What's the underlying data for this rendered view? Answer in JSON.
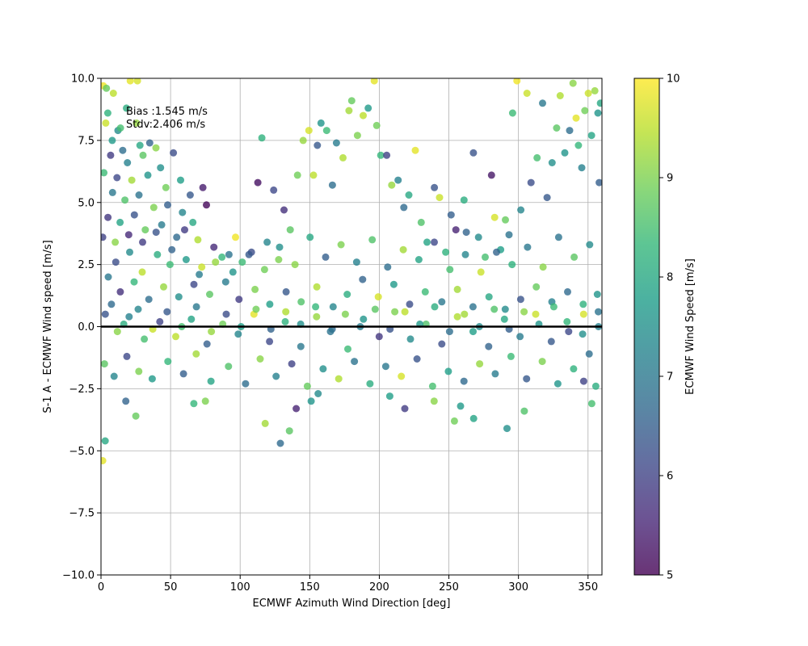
{
  "chart_data": {
    "type": "scatter",
    "title": "",
    "xlabel": "ECMWF Azimuth Wind Direction [deg]",
    "ylabel": "S-1 A - ECMWF Wind speed [m/s]",
    "xlim": [
      0,
      360
    ],
    "ylim": [
      -10,
      10
    ],
    "x_ticks": [
      0,
      50,
      100,
      150,
      200,
      250,
      300,
      350
    ],
    "y_ticks": [
      -10.0,
      -7.5,
      -5.0,
      -2.5,
      0.0,
      2.5,
      5.0,
      7.5,
      10.0
    ],
    "x_tick_labels": [
      "0",
      "50",
      "100",
      "150",
      "200",
      "250",
      "300",
      "350"
    ],
    "y_tick_labels": [
      "−10.0",
      "−7.5",
      "−5.0",
      "−2.5",
      "0.0",
      "2.5",
      "5.0",
      "7.5",
      "10.0"
    ],
    "grid": true,
    "reference_line_y": 0.0,
    "point_alpha": 0.8,
    "colormap": "viridis",
    "colormap_stops": [
      "#440154",
      "#482878",
      "#3e4989",
      "#31688e",
      "#26828e",
      "#1f9e89",
      "#35b779",
      "#6ece58",
      "#b5de2b",
      "#fde725"
    ],
    "color_label": "ECMWF Wind Speed [m/s]",
    "color_range": [
      5,
      10
    ],
    "color_ticks": [
      5,
      6,
      7,
      8,
      9,
      10
    ],
    "color_tick_labels": [
      "5",
      "6",
      "7",
      "8",
      "9",
      "10"
    ],
    "annotations": [
      "Bias :1.545 m/s",
      "Stdv:2.406 m/s"
    ],
    "points": [
      [
        1.6,
        9.7,
        9.9
      ],
      [
        3.9,
        9.6,
        8.8
      ],
      [
        8.9,
        9.4,
        9.5
      ],
      [
        4.9,
        8.6,
        8.2
      ],
      [
        12.2,
        7.9,
        7.4
      ],
      [
        21.0,
        9.9,
        9.8
      ],
      [
        26.2,
        9.9,
        9.7
      ],
      [
        18.3,
        8.8,
        8.1
      ],
      [
        3.4,
        8.2,
        9.6
      ],
      [
        14.0,
        8.0,
        8.5
      ],
      [
        25.5,
        8.2,
        9.2
      ],
      [
        8.1,
        7.5,
        7.7
      ],
      [
        15.6,
        7.1,
        6.8
      ],
      [
        28.0,
        7.3,
        8.0
      ],
      [
        35.0,
        7.4,
        6.6
      ],
      [
        6.9,
        6.9,
        5.9
      ],
      [
        19.0,
        6.6,
        7.2
      ],
      [
        30.2,
        6.9,
        8.7
      ],
      [
        39.5,
        7.2,
        9.1
      ],
      [
        42.8,
        6.4,
        7.5
      ],
      [
        52.0,
        7.0,
        6.2
      ],
      [
        2.1,
        6.2,
        8.4
      ],
      [
        11.5,
        6.0,
        6.1
      ],
      [
        22.1,
        5.9,
        9.3
      ],
      [
        33.7,
        6.1,
        7.6
      ],
      [
        46.6,
        5.6,
        8.9
      ],
      [
        57.2,
        5.9,
        7.8
      ],
      [
        64.1,
        5.3,
        6.4
      ],
      [
        73.2,
        5.6,
        5.4
      ],
      [
        75.8,
        4.9,
        5.1
      ],
      [
        8.3,
        5.4,
        7.0
      ],
      [
        17.2,
        5.1,
        8.6
      ],
      [
        27.3,
        5.3,
        6.9
      ],
      [
        37.9,
        4.8,
        9.0
      ],
      [
        47.9,
        4.9,
        6.5
      ],
      [
        58.5,
        4.6,
        7.3
      ],
      [
        66.0,
        4.2,
        8.0
      ],
      [
        5.0,
        4.4,
        5.8
      ],
      [
        13.7,
        4.2,
        7.9
      ],
      [
        24.0,
        4.5,
        6.3
      ],
      [
        31.8,
        3.9,
        8.8
      ],
      [
        43.6,
        4.1,
        7.1
      ],
      [
        54.4,
        3.6,
        6.7
      ],
      [
        69.6,
        3.5,
        9.4
      ],
      [
        81.1,
        3.2,
        5.6
      ],
      [
        86.9,
        2.8,
        8.3
      ],
      [
        1.2,
        3.6,
        6.0
      ],
      [
        10.2,
        3.4,
        9.1
      ],
      [
        20.6,
        3.0,
        7.4
      ],
      [
        29.9,
        3.4,
        5.9
      ],
      [
        40.5,
        2.9,
        8.1
      ],
      [
        50.9,
        3.1,
        6.6
      ],
      [
        61.2,
        2.7,
        7.7
      ],
      [
        72.4,
        2.4,
        9.6
      ],
      [
        92.0,
        2.9,
        6.9
      ],
      [
        96.7,
        3.6,
        9.9
      ],
      [
        101.5,
        2.6,
        8.4
      ],
      [
        108.1,
        3.0,
        6.2
      ],
      [
        112.7,
        5.8,
        5.2
      ],
      [
        115.6,
        7.6,
        8.2
      ],
      [
        119.4,
        3.4,
        7.3
      ],
      [
        124.1,
        5.5,
        6.1
      ],
      [
        127.7,
        2.7,
        9.0
      ],
      [
        131.5,
        4.7,
        5.7
      ],
      [
        136.0,
        3.9,
        8.7
      ],
      [
        141.2,
        6.1,
        8.9
      ],
      [
        145.3,
        7.5,
        9.2
      ],
      [
        149.4,
        7.9,
        9.7
      ],
      [
        152.7,
        6.1,
        9.5
      ],
      [
        155.5,
        7.3,
        6.4
      ],
      [
        158.1,
        8.2,
        7.6
      ],
      [
        162.2,
        7.9,
        8.4
      ],
      [
        166.3,
        5.7,
        6.8
      ],
      [
        169.2,
        7.4,
        7.1
      ],
      [
        173.9,
        6.8,
        9.4
      ],
      [
        178.2,
        8.7,
        9.3
      ],
      [
        180.2,
        9.1,
        8.8
      ],
      [
        184.3,
        7.7,
        9.0
      ],
      [
        188.4,
        8.5,
        9.5
      ],
      [
        192.0,
        8.8,
        7.7
      ],
      [
        196.4,
        9.9,
        9.8
      ],
      [
        198.1,
        8.1,
        8.9
      ],
      [
        201.0,
        6.9,
        8.3
      ],
      [
        205.3,
        6.9,
        6.0
      ],
      [
        208.9,
        5.7,
        9.2
      ],
      [
        213.5,
        5.9,
        7.2
      ],
      [
        217.6,
        4.8,
        6.7
      ],
      [
        221.2,
        5.3,
        8.0
      ],
      [
        225.9,
        7.1,
        9.8
      ],
      [
        230.1,
        4.2,
        8.6
      ],
      [
        234.3,
        3.4,
        7.9
      ],
      [
        239.6,
        5.6,
        6.3
      ],
      [
        243.3,
        5.2,
        9.6
      ],
      [
        247.7,
        3.0,
        8.2
      ],
      [
        251.6,
        4.5,
        6.5
      ],
      [
        255.0,
        3.9,
        5.5
      ],
      [
        260.9,
        5.1,
        8.1
      ],
      [
        262.5,
        3.8,
        6.6
      ],
      [
        267.6,
        7.0,
        6.3
      ],
      [
        271.3,
        3.6,
        7.4
      ],
      [
        276.1,
        2.8,
        8.5
      ],
      [
        280.6,
        6.1,
        5.3
      ],
      [
        282.9,
        4.4,
        9.7
      ],
      [
        287.2,
        3.1,
        7.8
      ],
      [
        290.6,
        4.3,
        8.8
      ],
      [
        293.2,
        3.7,
        6.9
      ],
      [
        295.8,
        8.6,
        8.4
      ],
      [
        298.9,
        9.9,
        9.9
      ],
      [
        301.7,
        4.7,
        7.3
      ],
      [
        306.1,
        9.4,
        9.6
      ],
      [
        309.0,
        5.8,
        6.2
      ],
      [
        313.4,
        6.8,
        8.5
      ],
      [
        317.3,
        9.0,
        7.0
      ],
      [
        320.6,
        5.2,
        6.4
      ],
      [
        324.2,
        6.6,
        7.5
      ],
      [
        327.4,
        8.0,
        8.7
      ],
      [
        330.0,
        9.3,
        9.4
      ],
      [
        333.3,
        7.0,
        7.6
      ],
      [
        336.8,
        7.9,
        6.8
      ],
      [
        339.2,
        9.8,
        9.1
      ],
      [
        341.4,
        8.4,
        9.8
      ],
      [
        343.1,
        7.3,
        8.3
      ],
      [
        345.5,
        6.4,
        7.2
      ],
      [
        347.7,
        8.7,
        8.9
      ],
      [
        350.2,
        9.4,
        9.6
      ],
      [
        352.5,
        7.7,
        7.9
      ],
      [
        354.9,
        9.5,
        9.2
      ],
      [
        357.1,
        8.6,
        7.6
      ],
      [
        358.9,
        9.0,
        8.0
      ],
      [
        358.0,
        5.8,
        6.5
      ],
      [
        5.2,
        2.0,
        7.0
      ],
      [
        13.9,
        1.4,
        5.7
      ],
      [
        23.8,
        1.8,
        8.3
      ],
      [
        34.4,
        1.1,
        6.8
      ],
      [
        45.0,
        1.6,
        9.2
      ],
      [
        55.9,
        1.2,
        7.5
      ],
      [
        66.8,
        1.7,
        6.1
      ],
      [
        78.1,
        1.3,
        8.7
      ],
      [
        89.6,
        1.8,
        7.1
      ],
      [
        99.2,
        1.1,
        5.9
      ],
      [
        110.7,
        1.5,
        9.0
      ],
      [
        121.3,
        0.9,
        7.8
      ],
      [
        133.0,
        1.4,
        6.4
      ],
      [
        143.8,
        1.0,
        8.6
      ],
      [
        155.1,
        1.6,
        9.4
      ],
      [
        166.8,
        0.8,
        7.3
      ],
      [
        176.9,
        1.3,
        8.1
      ],
      [
        188.0,
        1.9,
        6.6
      ],
      [
        199.3,
        1.2,
        9.7
      ],
      [
        210.4,
        1.7,
        7.7
      ],
      [
        221.8,
        0.9,
        6.2
      ],
      [
        233.0,
        1.4,
        8.4
      ],
      [
        244.9,
        1.0,
        7.0
      ],
      [
        256.1,
        1.5,
        9.3
      ],
      [
        267.3,
        0.8,
        6.9
      ],
      [
        278.8,
        1.2,
        8.0
      ],
      [
        290.5,
        0.7,
        7.4
      ],
      [
        301.6,
        1.1,
        6.3
      ],
      [
        312.8,
        1.6,
        8.8
      ],
      [
        324.0,
        1.0,
        7.2
      ],
      [
        335.3,
        1.4,
        6.7
      ],
      [
        346.5,
        0.9,
        8.2
      ],
      [
        356.7,
        1.3,
        7.6
      ],
      [
        3.1,
        0.5,
        6.3
      ],
      [
        11.8,
        -0.2,
        9.1
      ],
      [
        20.2,
        0.4,
        7.2
      ],
      [
        31.1,
        -0.5,
        8.5
      ],
      [
        42.3,
        0.2,
        6.0
      ],
      [
        53.7,
        -0.4,
        9.5
      ],
      [
        64.9,
        0.3,
        7.9
      ],
      [
        76.2,
        -0.7,
        6.5
      ],
      [
        87.5,
        0.1,
        8.9
      ],
      [
        98.6,
        -0.3,
        7.3
      ],
      [
        109.9,
        0.5,
        9.8
      ],
      [
        121.1,
        -0.6,
        6.1
      ],
      [
        132.4,
        0.2,
        8.2
      ],
      [
        143.6,
        -0.8,
        7.0
      ],
      [
        154.9,
        0.4,
        9.2
      ],
      [
        166.1,
        -0.1,
        6.7
      ],
      [
        177.4,
        -0.9,
        8.4
      ],
      [
        188.6,
        0.3,
        7.6
      ],
      [
        199.9,
        -0.4,
        5.8
      ],
      [
        211.1,
        0.6,
        9.0
      ],
      [
        222.4,
        -0.5,
        7.4
      ],
      [
        233.6,
        0.1,
        8.6
      ],
      [
        244.9,
        -0.7,
        6.2
      ],
      [
        256.1,
        0.4,
        9.4
      ],
      [
        267.4,
        -0.2,
        7.8
      ],
      [
        278.6,
        -0.8,
        6.6
      ],
      [
        289.9,
        0.3,
        8.0
      ],
      [
        301.1,
        -0.4,
        7.1
      ],
      [
        312.4,
        0.5,
        9.6
      ],
      [
        323.6,
        -0.6,
        6.4
      ],
      [
        334.9,
        0.2,
        8.3
      ],
      [
        346.1,
        -0.3,
        7.5
      ],
      [
        357.4,
        0.6,
        6.9
      ],
      [
        2.5,
        -1.5,
        8.7
      ],
      [
        9.4,
        -2.0,
        7.3
      ],
      [
        18.6,
        -1.2,
        6.1
      ],
      [
        27.2,
        -1.8,
        9.0
      ],
      [
        36.8,
        -2.1,
        7.7
      ],
      [
        48.1,
        -1.4,
        8.3
      ],
      [
        59.3,
        -1.9,
        6.5
      ],
      [
        68.4,
        -1.1,
        9.3
      ],
      [
        79.0,
        -2.2,
        7.9
      ],
      [
        91.6,
        -1.6,
        8.6
      ],
      [
        103.9,
        -2.3,
        6.8
      ],
      [
        114.4,
        -1.3,
        9.1
      ],
      [
        125.8,
        -2.0,
        7.2
      ],
      [
        137.1,
        -1.5,
        6.0
      ],
      [
        148.3,
        -2.4,
        8.8
      ],
      [
        159.6,
        -1.7,
        7.5
      ],
      [
        170.8,
        -2.1,
        9.4
      ],
      [
        182.1,
        -1.4,
        6.9
      ],
      [
        193.3,
        -2.3,
        8.1
      ],
      [
        204.6,
        -1.6,
        7.0
      ],
      [
        215.8,
        -2.0,
        9.7
      ],
      [
        227.1,
        -1.3,
        6.3
      ],
      [
        238.3,
        -2.4,
        8.5
      ],
      [
        249.6,
        -1.8,
        7.8
      ],
      [
        260.8,
        -2.2,
        6.7
      ],
      [
        272.1,
        -1.5,
        9.2
      ],
      [
        283.3,
        -1.9,
        7.1
      ],
      [
        294.6,
        -1.2,
        8.4
      ],
      [
        305.8,
        -2.1,
        6.4
      ],
      [
        317.1,
        -1.4,
        9.0
      ],
      [
        328.3,
        -2.3,
        7.6
      ],
      [
        339.6,
        -1.7,
        8.2
      ],
      [
        350.8,
        -1.1,
        6.8
      ],
      [
        3.0,
        -4.6,
        8.0
      ],
      [
        1.2,
        -5.4,
        9.8
      ],
      [
        17.8,
        -3.0,
        6.6
      ],
      [
        25.0,
        -3.6,
        8.8
      ],
      [
        66.7,
        -3.1,
        8.3
      ],
      [
        75.0,
        -3.0,
        9.0
      ],
      [
        118.0,
        -3.9,
        9.3
      ],
      [
        128.9,
        -4.7,
        6.7
      ],
      [
        135.4,
        -4.2,
        8.7
      ],
      [
        140.3,
        -3.3,
        5.5
      ],
      [
        151.0,
        -3.0,
        7.6
      ],
      [
        156.0,
        -2.7,
        7.4
      ],
      [
        207.5,
        -2.8,
        7.8
      ],
      [
        218.3,
        -3.3,
        5.9
      ],
      [
        239.4,
        -3.0,
        9.1
      ],
      [
        254.0,
        -3.8,
        8.9
      ],
      [
        258.4,
        -3.2,
        7.7
      ],
      [
        267.8,
        -3.7,
        7.9
      ],
      [
        291.8,
        -4.1,
        7.5
      ],
      [
        304.2,
        -3.4,
        8.6
      ],
      [
        346.9,
        -2.2,
        6.0
      ],
      [
        352.7,
        -3.1,
        8.5
      ],
      [
        355.6,
        -2.4,
        8.1
      ],
      [
        10.6,
        2.6,
        6.2
      ],
      [
        19.9,
        3.7,
        5.6
      ],
      [
        29.6,
        2.2,
        9.5
      ],
      [
        39.6,
        3.8,
        6.3
      ],
      [
        49.6,
        2.5,
        8.4
      ],
      [
        60.1,
        3.9,
        5.9
      ],
      [
        70.6,
        2.1,
        7.1
      ],
      [
        82.3,
        2.6,
        9.2
      ],
      [
        94.8,
        2.2,
        7.6
      ],
      [
        106.3,
        2.9,
        6.4
      ],
      [
        117.5,
        2.3,
        8.9
      ],
      [
        128.3,
        3.2,
        7.5
      ],
      [
        139.4,
        2.5,
        9.1
      ],
      [
        150.2,
        3.6,
        8.0
      ],
      [
        161.4,
        2.8,
        6.5
      ],
      [
        172.5,
        3.3,
        9.0
      ],
      [
        183.7,
        2.6,
        7.2
      ],
      [
        194.9,
        3.5,
        8.6
      ],
      [
        206.0,
        2.4,
        6.8
      ],
      [
        217.2,
        3.1,
        9.3
      ],
      [
        228.4,
        2.7,
        7.9
      ],
      [
        239.5,
        3.4,
        6.1
      ],
      [
        250.7,
        2.3,
        8.5
      ],
      [
        261.9,
        2.9,
        7.3
      ],
      [
        273.0,
        2.2,
        9.6
      ],
      [
        284.2,
        3.0,
        6.6
      ],
      [
        295.4,
        2.5,
        8.2
      ],
      [
        306.5,
        3.2,
        7.0
      ],
      [
        317.7,
        2.4,
        9.1
      ],
      [
        328.9,
        3.6,
        6.9
      ],
      [
        340.0,
        2.8,
        8.7
      ],
      [
        351.2,
        3.3,
        7.4
      ],
      [
        7.5,
        0.9,
        6.7
      ],
      [
        16.4,
        0.1,
        8.1
      ],
      [
        26.7,
        0.7,
        7.3
      ],
      [
        37.2,
        -0.1,
        9.6
      ],
      [
        47.5,
        0.6,
        6.4
      ],
      [
        58.0,
        0.0,
        8.5
      ],
      [
        68.6,
        0.8,
        7.0
      ],
      [
        79.3,
        -0.2,
        9.2
      ],
      [
        90.0,
        0.5,
        6.2
      ],
      [
        100.7,
        0.0,
        7.8
      ],
      [
        111.4,
        0.7,
        8.9
      ],
      [
        122.1,
        -0.1,
        6.6
      ],
      [
        132.8,
        0.6,
        9.4
      ],
      [
        143.5,
        0.1,
        7.5
      ],
      [
        154.2,
        0.8,
        8.3
      ],
      [
        164.9,
        -0.2,
        6.9
      ],
      [
        175.6,
        0.5,
        9.0
      ],
      [
        186.3,
        0.0,
        7.1
      ],
      [
        197.0,
        0.7,
        8.7
      ],
      [
        207.7,
        -0.1,
        6.3
      ],
      [
        218.4,
        0.6,
        9.5
      ],
      [
        229.1,
        0.1,
        7.7
      ],
      [
        239.8,
        0.8,
        8.1
      ],
      [
        250.5,
        -0.2,
        6.8
      ],
      [
        261.2,
        0.5,
        9.3
      ],
      [
        271.9,
        0.0,
        7.4
      ],
      [
        282.6,
        0.7,
        8.6
      ],
      [
        293.3,
        -0.1,
        6.5
      ],
      [
        304.0,
        0.6,
        9.1
      ],
      [
        314.7,
        0.1,
        7.6
      ],
      [
        325.4,
        0.8,
        8.4
      ],
      [
        336.1,
        -0.2,
        6.1
      ],
      [
        346.8,
        0.5,
        9.7
      ],
      [
        357.5,
        0.0,
        7.2
      ]
    ]
  }
}
